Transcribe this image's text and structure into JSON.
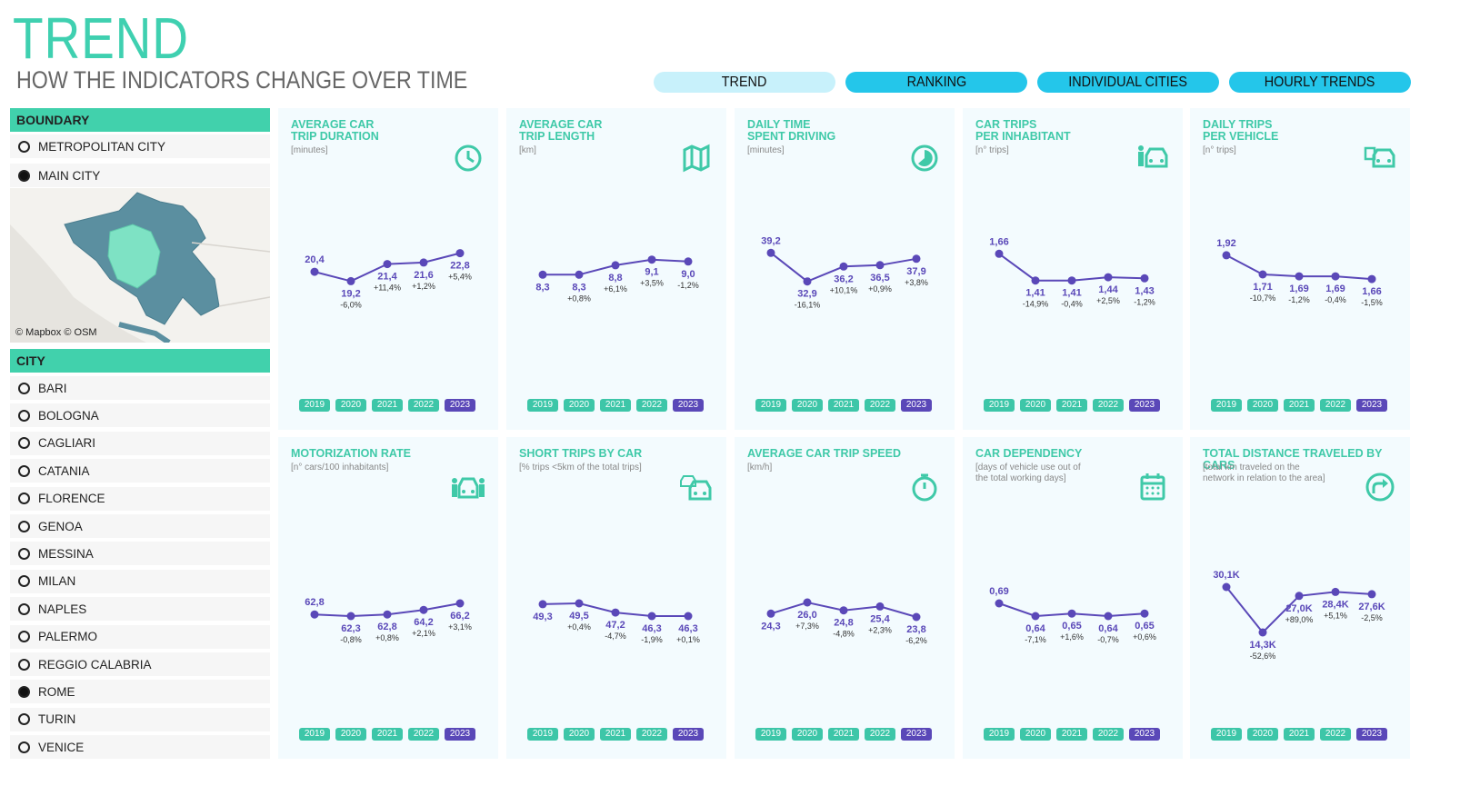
{
  "header": {
    "title": "TREND",
    "subtitle": "HOW THE INDICATORS CHANGE OVER TIME"
  },
  "tabs": [
    {
      "label": "TREND",
      "active": true
    },
    {
      "label": "RANKING",
      "active": false
    },
    {
      "label": "INDIVIDUAL CITIES",
      "active": false
    },
    {
      "label": "HOURLY TRENDS",
      "active": false
    }
  ],
  "boundary": {
    "header": "BOUNDARY",
    "options": [
      {
        "label": "METROPOLITAN CITY",
        "selected": false
      },
      {
        "label": "MAIN CITY",
        "selected": true
      }
    ]
  },
  "map": {
    "credit": "© Mapbox  © OSM"
  },
  "city": {
    "header": "CITY",
    "options": [
      {
        "label": "BARI",
        "selected": false
      },
      {
        "label": "BOLOGNA",
        "selected": false
      },
      {
        "label": "CAGLIARI",
        "selected": false
      },
      {
        "label": "CATANIA",
        "selected": false
      },
      {
        "label": "FLORENCE",
        "selected": false
      },
      {
        "label": "GENOA",
        "selected": false
      },
      {
        "label": "MESSINA",
        "selected": false
      },
      {
        "label": "MILAN",
        "selected": false
      },
      {
        "label": "NAPLES",
        "selected": false
      },
      {
        "label": "PALERMO",
        "selected": false
      },
      {
        "label": "REGGIO CALABRIA",
        "selected": false
      },
      {
        "label": "ROME",
        "selected": true
      },
      {
        "label": "TURIN",
        "selected": false
      },
      {
        "label": "VENICE",
        "selected": false
      }
    ]
  },
  "years": [
    "2019",
    "2020",
    "2021",
    "2022",
    "2023"
  ],
  "selected_year": "2023",
  "colors": {
    "accent": "#3fd0b0",
    "line": "#5a48b8",
    "tab": "#24c6ea",
    "tab_active": "#c8f1fb"
  },
  "chart_data": [
    {
      "type": "line",
      "title": "AVERAGE CAR\nTRIP DURATION",
      "unit": "[minutes]",
      "icon": "clock-icon",
      "x": [
        "2019",
        "2020",
        "2021",
        "2022",
        "2023"
      ],
      "values": [
        20.4,
        19.2,
        21.4,
        21.6,
        22.8
      ],
      "value_labels": [
        "20,4",
        "19,2",
        "21,4",
        "21,6",
        "22,8"
      ],
      "change_labels": [
        "",
        "-6,0%",
        "+11,4%",
        "+1,2%",
        "+5,4%"
      ]
    },
    {
      "type": "line",
      "title": "AVERAGE CAR\nTRIP LENGTH",
      "unit": "[km]",
      "icon": "map-icon",
      "x": [
        "2019",
        "2020",
        "2021",
        "2022",
        "2023"
      ],
      "values": [
        8.3,
        8.3,
        8.8,
        9.1,
        9.0
      ],
      "value_labels": [
        "8,3",
        "8,3",
        "8,8",
        "9,1",
        "9,0"
      ],
      "change_labels": [
        "",
        "+0,8%",
        "+6,1%",
        "+3,5%",
        "-1,2%"
      ]
    },
    {
      "type": "line",
      "title": "DAILY TIME\nSPENT DRIVING",
      "unit": "[minutes]",
      "icon": "pie-clock-icon",
      "x": [
        "2019",
        "2020",
        "2021",
        "2022",
        "2023"
      ],
      "values": [
        39.2,
        32.9,
        36.2,
        36.5,
        37.9
      ],
      "value_labels": [
        "39,2",
        "32,9",
        "36,2",
        "36,5",
        "37,9"
      ],
      "change_labels": [
        "",
        "-16,1%",
        "+10,1%",
        "+0,9%",
        "+3,8%"
      ]
    },
    {
      "type": "line",
      "title": "CAR TRIPS\nPER INHABITANT",
      "unit": "[n° trips]",
      "icon": "person-car-icon",
      "x": [
        "2019",
        "2020",
        "2021",
        "2022",
        "2023"
      ],
      "values": [
        1.66,
        1.41,
        1.41,
        1.44,
        1.43
      ],
      "value_labels": [
        "1,66",
        "1,41",
        "1,41",
        "1,44",
        "1,43"
      ],
      "change_labels": [
        "",
        "-14,9%",
        "-0,4%",
        "+2,5%",
        "-1,2%"
      ]
    },
    {
      "type": "line",
      "title": "DAILY TRIPS\nPER VEHICLE",
      "unit": "[n° trips]",
      "icon": "car-calendar-icon",
      "x": [
        "2019",
        "2020",
        "2021",
        "2022",
        "2023"
      ],
      "values": [
        1.92,
        1.71,
        1.69,
        1.69,
        1.66
      ],
      "value_labels": [
        "1,92",
        "1,71",
        "1,69",
        "1,69",
        "1,66"
      ],
      "change_labels": [
        "",
        "-10,7%",
        "-1,2%",
        "-0,4%",
        "-1,5%"
      ]
    },
    {
      "type": "line",
      "title": "MOTORIZATION RATE",
      "unit": "[n° cars/100 inhabitants]",
      "icon": "people-car-icon",
      "x": [
        "2019",
        "2020",
        "2021",
        "2022",
        "2023"
      ],
      "values": [
        62.8,
        62.3,
        62.8,
        64.2,
        66.2
      ],
      "value_labels": [
        "62,8",
        "62,3",
        "62,8",
        "64,2",
        "66,2"
      ],
      "change_labels": [
        "",
        "-0,8%",
        "+0,8%",
        "+2,1%",
        "+3,1%"
      ]
    },
    {
      "type": "line",
      "title": "SHORT TRIPS BY CAR",
      "unit": "[% trips <5km of the total trips]",
      "icon": "cars-icon",
      "x": [
        "2019",
        "2020",
        "2021",
        "2022",
        "2023"
      ],
      "values": [
        49.3,
        49.5,
        47.2,
        46.3,
        46.3
      ],
      "value_labels": [
        "49,3",
        "49,5",
        "47,2",
        "46,3",
        "46,3"
      ],
      "change_labels": [
        "",
        "+0,4%",
        "-4,7%",
        "-1,9%",
        "+0,1%"
      ]
    },
    {
      "type": "line",
      "title": "AVERAGE CAR TRIP SPEED",
      "unit": "[km/h]",
      "icon": "stopwatch-icon",
      "x": [
        "2019",
        "2020",
        "2021",
        "2022",
        "2023"
      ],
      "values": [
        24.3,
        26.0,
        24.8,
        25.4,
        23.8
      ],
      "value_labels": [
        "24,3",
        "26,0",
        "24,8",
        "25,4",
        "23,8"
      ],
      "change_labels": [
        "",
        "+7,3%",
        "-4,8%",
        "+2,3%",
        "-6,2%"
      ]
    },
    {
      "type": "line",
      "title": "CAR DEPENDENCY",
      "unit": "[days of vehicle use out of\nthe total working days]",
      "icon": "calendar-icon",
      "x": [
        "2019",
        "2020",
        "2021",
        "2022",
        "2023"
      ],
      "values": [
        0.69,
        0.64,
        0.65,
        0.64,
        0.65
      ],
      "value_labels": [
        "0,69",
        "0,64",
        "0,65",
        "0,64",
        "0,65"
      ],
      "change_labels": [
        "",
        "-7,1%",
        "+1,6%",
        "-0,7%",
        "+0,6%"
      ]
    },
    {
      "type": "line",
      "title": "TOTAL DISTANCE TRAVELED BY CARS",
      "unit": "[total km traveled on the\nnetwork in relation to the area]",
      "icon": "route-arrow-icon",
      "x": [
        "2019",
        "2020",
        "2021",
        "2022",
        "2023"
      ],
      "values": [
        30.1,
        14.3,
        27.0,
        28.4,
        27.6
      ],
      "value_labels": [
        "30,1K",
        "14,3K",
        "27,0K",
        "28,4K",
        "27,6K"
      ],
      "change_labels": [
        "",
        "-52,6%",
        "+89,0%",
        "+5,1%",
        "-2,5%"
      ]
    }
  ]
}
